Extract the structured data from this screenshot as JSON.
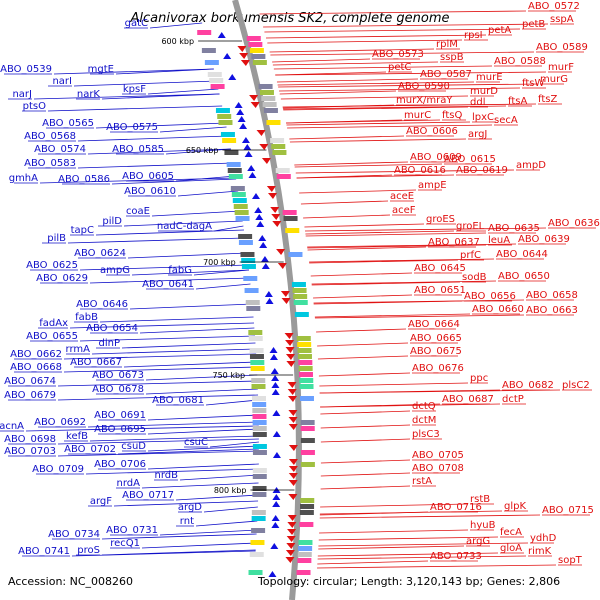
{
  "title": "Alcanivorax borkumensis SK2, complete genome",
  "footer": {
    "accession": "Accession: NC_008260",
    "topology": "Topology: circular; Length: 3,120,143 bp; Genes: 2,806"
  },
  "colors": {
    "left_labels": "#1010c8",
    "right_labels": "#e01010",
    "backbone": "#9a9a9a"
  },
  "kbp_marks": [
    "600 kbp",
    "650 kbp",
    "700 kbp",
    "750 kbp",
    "800 kbp"
  ],
  "left_labels": [
    "gatC",
    "ABO_0539",
    "mgtE",
    "narI",
    "narJ",
    "narK",
    "ptsO",
    "kpsF",
    "ABO_0565",
    "ABO_0575",
    "ABO_0568",
    "ABO_0574",
    "ABO_0585",
    "ABO_0583",
    "gmhA",
    "ABO_0586",
    "ABO_0605",
    "ABO_0610",
    "coaE",
    "pilD",
    "nadC-dagA",
    "tapC",
    "pilB",
    "ABO_0624",
    "ABO_0625",
    "ampG",
    "fabG",
    "ABO_0629",
    "ABO_0641",
    "ABO_0646",
    "fabB",
    "fadAx",
    "ABO_0654",
    "ABO_0655",
    "dinP",
    "rrmA",
    "ABO_0662",
    "ABO_0667",
    "ABO_0668",
    "ABO_0673",
    "ABO_0674",
    "ABO_0678",
    "ABO_0679",
    "ABO_0681",
    "ABO_0691",
    "acnA",
    "ABO_0692",
    "ABO_0695",
    "kefB",
    "ABO_0698",
    "csuC",
    "ABO_0703",
    "ABO_0702",
    "csuD",
    "ABO_0706",
    "ABO_0709",
    "nrdB",
    "nrdA",
    "ABO_0717",
    "argF",
    "argD",
    "rnt",
    "ABO_0731",
    "ABO_0734",
    "recQ1",
    "ABO_0741",
    "proS"
  ],
  "right_labels": [
    "ABO_0572",
    "sspA",
    "petB",
    "petA",
    "rpsI",
    "rplM",
    "ABO_0573",
    "sspB",
    "petC",
    "ABO_0589",
    "ABO_0588",
    "murF",
    "ABO_0587",
    "murE",
    "ftsW",
    "murG",
    "ABO_0590",
    "murD",
    "murX/mraY",
    "ddl",
    "ftsA",
    "ftsZ",
    "murC",
    "ftsQ",
    "lpxC",
    "secA",
    "ABO_0606",
    "argJ",
    "ABO_0609",
    "ABO_0615",
    "ampD",
    "ABO_0616",
    "ABO_0619",
    "ampE",
    "aceE",
    "aceF",
    "groES",
    "groEL",
    "ABO_0635",
    "ABO_0636",
    "ABO_0637",
    "leuA",
    "ABO_0639",
    "prfC",
    "ABO_0644",
    "ABO_0645",
    "sodB",
    "ABO_0650",
    "ABO_0651",
    "ABO_0656",
    "ABO_0658",
    "ABO_0660",
    "ABO_0663",
    "ABO_0664",
    "ABO_0665",
    "ABO_0675",
    "ABO_0676",
    "ppc",
    "ABO_0682",
    "plsC2",
    "ABO_0687",
    "dctP",
    "dctQ",
    "dctM",
    "plsC3",
    "ABO_0705",
    "ABO_0708",
    "rstA",
    "rstB",
    "glpK",
    "ABO_0716",
    "ABO_0715",
    "hyuB",
    "fecA",
    "ydhD",
    "argG",
    "gloA",
    "rimK",
    "ABO_0733",
    "sopT"
  ]
}
